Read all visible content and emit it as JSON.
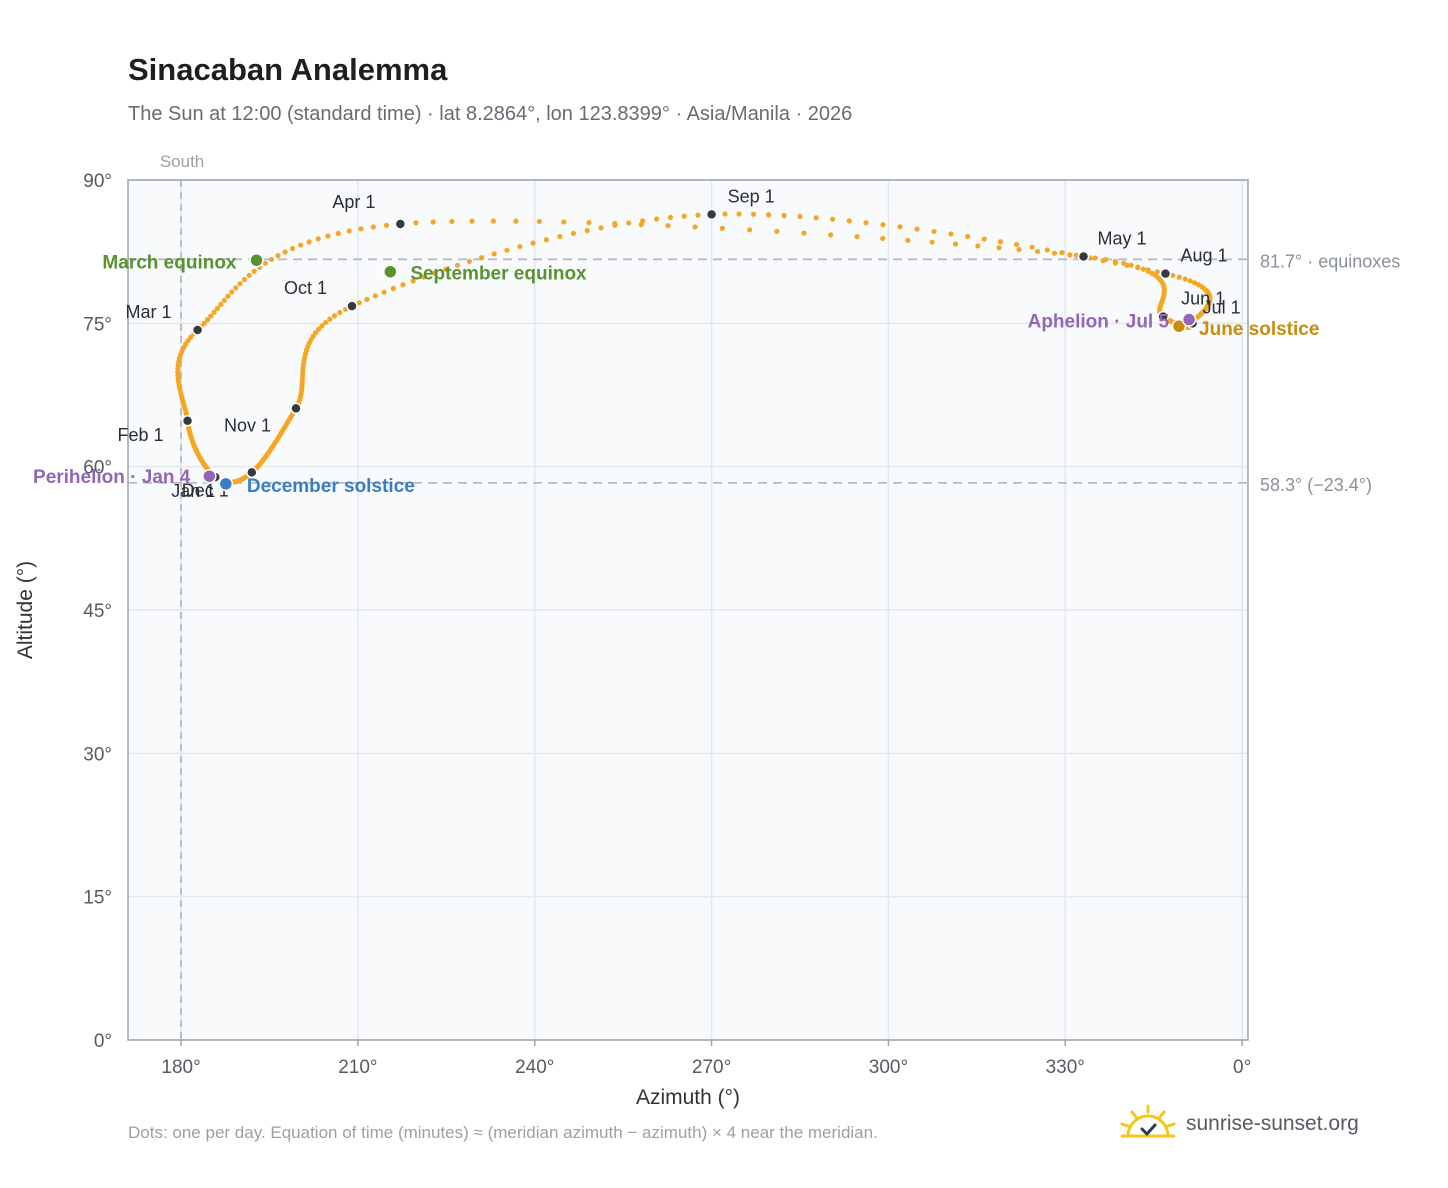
{
  "title": "Sinacaban Analemma",
  "subtitle": "The Sun at 12:00 (standard time) · lat 8.2864°, lon 123.8399° · Asia/Manila · 2026",
  "footnote": "Dots: one per day. Equation of time (minutes) ≈ (meridian azimuth − azimuth) × 4 near the meridian.",
  "brand": "sunrise-sunset.org",
  "colors": {
    "curve": "#f5a623",
    "month_dot": "#343a40",
    "equinox": "#5a9232",
    "december": "#3b7dc4",
    "june": "#c98c0c",
    "perihelion": "#9466b8",
    "grid": "#e3e8ee",
    "plot_bg": "#f8fafc",
    "ref_line": "#b4bcc5"
  },
  "chart_data": {
    "type": "scatter",
    "title": "Sinacaban Analemma",
    "xlabel": "Azimuth (°)",
    "ylabel": "Altitude (°)",
    "xlim": [
      171,
      1
    ],
    "ylim": [
      0,
      90
    ],
    "x_reversed": true,
    "grid": true,
    "x_ticks": [
      180,
      210,
      240,
      270,
      300,
      330,
      0
    ],
    "x_tick_labels": [
      "180°",
      "210°",
      "240°",
      "270°",
      "300°",
      "330°",
      "0°"
    ],
    "y_ticks": [
      0,
      15,
      30,
      45,
      60,
      75,
      90
    ],
    "y_tick_labels": [
      "0°",
      "15°",
      "30°",
      "45°",
      "60°",
      "75°",
      "90°"
    ],
    "south_line": {
      "azimuth": 180,
      "label": "South"
    },
    "reference_lines": [
      {
        "altitude": 81.7,
        "label": "81.7° · equinoxes"
      },
      {
        "altitude": 58.3,
        "label": "58.3° (−23.4°)"
      }
    ],
    "month_points": [
      {
        "label": "Jan 1",
        "az": 185.8,
        "alt": 58.9
      },
      {
        "label": "Feb 1",
        "az": 181.1,
        "alt": 64.8
      },
      {
        "label": "Mar 1",
        "az": 182.8,
        "alt": 74.3
      },
      {
        "label": "Apr 1",
        "az": 217.2,
        "alt": 85.4
      },
      {
        "label": "May 1",
        "az": 333.1,
        "alt": 82.0
      },
      {
        "label": "Jun 1",
        "az": 346.6,
        "alt": 75.7
      },
      {
        "label": "Jul 1",
        "az": 351.6,
        "alt": 75.0
      },
      {
        "label": "Aug 1",
        "az": 347.0,
        "alt": 80.2
      },
      {
        "label": "Sep 1",
        "az": 270.0,
        "alt": 86.4
      },
      {
        "label": "Oct 1",
        "az": 209.0,
        "alt": 76.8
      },
      {
        "label": "Nov 1",
        "az": 199.5,
        "alt": 66.1
      },
      {
        "label": "Dec 1",
        "az": 192.0,
        "alt": 59.4
      }
    ],
    "special_points": [
      {
        "label": "March equinox",
        "az": 192.8,
        "alt": 81.6,
        "kind": "equinox"
      },
      {
        "label": "September equinox",
        "az": 215.5,
        "alt": 80.4,
        "kind": "equinox"
      },
      {
        "label": "December solstice",
        "az": 187.6,
        "alt": 58.2,
        "kind": "december"
      },
      {
        "label": "June solstice",
        "az": 349.3,
        "alt": 74.7,
        "kind": "june"
      },
      {
        "label": "Perihelion · Jan 4",
        "az": 184.8,
        "alt": 59.0,
        "kind": "perihelion"
      },
      {
        "label": "Aphelion · Jul 5",
        "az": 351.0,
        "alt": 75.4,
        "kind": "perihelion"
      }
    ]
  }
}
